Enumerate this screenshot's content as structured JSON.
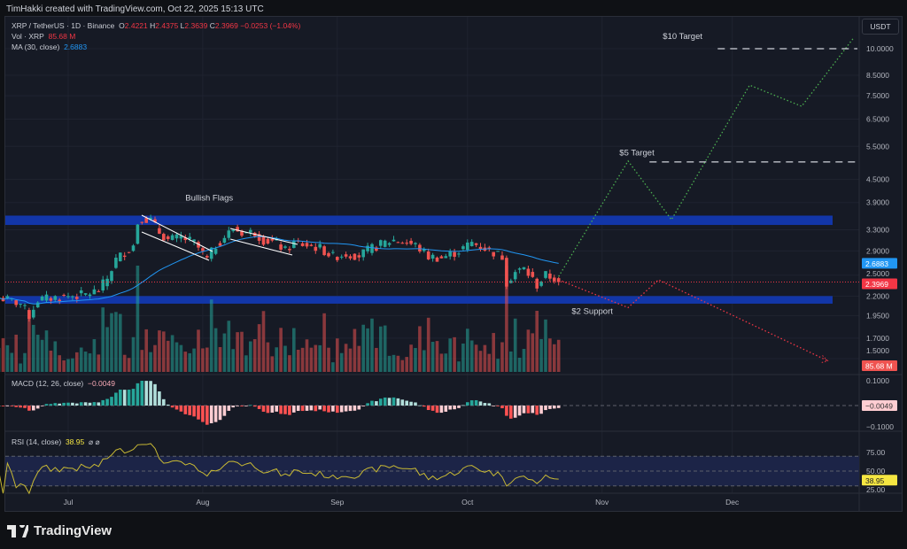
{
  "credit": "TimHakki created with TradingView.com, Oct 22, 2025 15:13 UTC",
  "legend": {
    "symbol": "XRP / TetherUS · 1D · Binance",
    "o_label": "O",
    "o": "2.4221",
    "h_label": "H",
    "h": "2.4375",
    "l_label": "L",
    "l": "2.3639",
    "c_label": "C",
    "c": "2.3969",
    "change": "−0.0253 (−1.04%)",
    "vol_label": "Vol · XRP",
    "vol": "85.68 M",
    "ma_label": "MA (30, close)",
    "ma": "2.6883",
    "macd_label": "MACD (12, 26, close)",
    "macd": "−0.0049",
    "rsi_label": "RSI (14, close)",
    "rsi": "38.95",
    "rsi_icons": "⌀ ⌀"
  },
  "currency_button": "USDT",
  "brand": "TradingView",
  "colors": {
    "up": "#26a69a",
    "down": "#ef5350",
    "ma": "#2196f3",
    "zone": "#1236a8",
    "bull_path": "#4caf50",
    "bear_path": "#f23645",
    "rsi": "#c8b934",
    "background": "#161a25"
  },
  "chart_data": {
    "type": "candlestick",
    "scale": "log",
    "ylim": [
      1.5,
      10
    ],
    "price_ticks": [
      "10.0000",
      "8.5000",
      "7.5000",
      "6.5000",
      "5.5000",
      "4.5000",
      "3.9000",
      "3.3000",
      "2.9000",
      "2.5000",
      "2.2000",
      "1.9500",
      "1.7000",
      "1.5000"
    ],
    "x_ticks": [
      {
        "label": "Jul",
        "date": "2025-07-01"
      },
      {
        "label": "Aug",
        "date": "2025-08-01"
      },
      {
        "label": "Sep",
        "date": "2025-09-01"
      },
      {
        "label": "Oct",
        "date": "2025-10-01"
      },
      {
        "label": "Nov",
        "date": "2025-11-01"
      },
      {
        "label": "Dec",
        "date": "2025-12-01"
      }
    ],
    "closes": [
      [
        "2025-06-15",
        2.18
      ],
      [
        "2025-06-17",
        2.15
      ],
      [
        "2025-06-20",
        2.1
      ],
      [
        "2025-06-22",
        1.95
      ],
      [
        "2025-06-24",
        2.15
      ],
      [
        "2025-06-28",
        2.18
      ],
      [
        "2025-07-01",
        2.2
      ],
      [
        "2025-07-05",
        2.22
      ],
      [
        "2025-07-08",
        2.28
      ],
      [
        "2025-07-10",
        2.45
      ],
      [
        "2025-07-12",
        2.75
      ],
      [
        "2025-07-14",
        2.88
      ],
      [
        "2025-07-16",
        3.0
      ],
      [
        "2025-07-17",
        3.45
      ],
      [
        "2025-07-18",
        3.55
      ],
      [
        "2025-07-20",
        3.5
      ],
      [
        "2025-07-22",
        3.25
      ],
      [
        "2025-07-24",
        3.1
      ],
      [
        "2025-07-27",
        3.15
      ],
      [
        "2025-07-30",
        3.05
      ],
      [
        "2025-08-02",
        2.75
      ],
      [
        "2025-08-04",
        3.0
      ],
      [
        "2025-08-08",
        3.32
      ],
      [
        "2025-08-10",
        3.25
      ],
      [
        "2025-08-13",
        3.25
      ],
      [
        "2025-08-15",
        3.1
      ],
      [
        "2025-08-18",
        3.05
      ],
      [
        "2025-08-20",
        2.9
      ],
      [
        "2025-08-22",
        3.05
      ],
      [
        "2025-08-25",
        3.0
      ],
      [
        "2025-08-28",
        2.95
      ],
      [
        "2025-08-31",
        2.8
      ],
      [
        "2025-09-03",
        2.85
      ],
      [
        "2025-09-06",
        2.82
      ],
      [
        "2025-09-09",
        2.95
      ],
      [
        "2025-09-12",
        3.05
      ],
      [
        "2025-09-14",
        3.1
      ],
      [
        "2025-09-17",
        3.05
      ],
      [
        "2025-09-19",
        3.0
      ],
      [
        "2025-09-22",
        2.8
      ],
      [
        "2025-09-25",
        2.78
      ],
      [
        "2025-09-29",
        2.9
      ],
      [
        "2025-10-02",
        3.05
      ],
      [
        "2025-10-05",
        2.95
      ],
      [
        "2025-10-09",
        2.8
      ],
      [
        "2025-10-10",
        2.4
      ],
      [
        "2025-10-12",
        2.55
      ],
      [
        "2025-10-14",
        2.6
      ],
      [
        "2025-10-17",
        2.35
      ],
      [
        "2025-10-19",
        2.5
      ],
      [
        "2025-10-21",
        2.45
      ],
      [
        "2025-10-22",
        2.3969
      ]
    ],
    "last_price": 2.3969,
    "ma_value": 2.6883,
    "volume_last": "85.68 M",
    "macd_ticks": [
      "0.1000",
      "−0.1000"
    ],
    "macd_value": "−0.0049",
    "rsi_ticks": [
      "75.00",
      "50.00",
      "25.00"
    ],
    "rsi_value": "38.95",
    "rsi_bands": [
      30,
      70
    ],
    "zones": [
      {
        "from": 3.4,
        "to": 3.6
      },
      {
        "from": 2.1,
        "to": 2.2
      }
    ],
    "annotations": [
      {
        "text": "Bullish Flags",
        "date": "2025-07-28",
        "price": 3.95
      },
      {
        "text": "$10 Target",
        "date": "2025-11-15",
        "price": 10.6,
        "level": 10.0
      },
      {
        "text": "$5 Target",
        "date": "2025-11-05",
        "price": 5.2,
        "level": 5.0
      },
      {
        "text": "$2 Support",
        "date": "2025-10-25",
        "price": 1.97
      }
    ],
    "bull_path": [
      [
        "2025-10-22",
        2.48
      ],
      [
        "2025-11-07",
        5.03
      ],
      [
        "2025-11-17",
        3.51
      ],
      [
        "2025-12-05",
        8.0
      ],
      [
        "2025-12-17",
        7.03
      ],
      [
        "2025-12-29",
        10.7
      ]
    ],
    "bear_path": [
      [
        "2025-10-22",
        2.43
      ],
      [
        "2025-11-07",
        2.05
      ],
      [
        "2025-11-14",
        2.43
      ],
      [
        "2025-12-23",
        1.48
      ]
    ]
  }
}
